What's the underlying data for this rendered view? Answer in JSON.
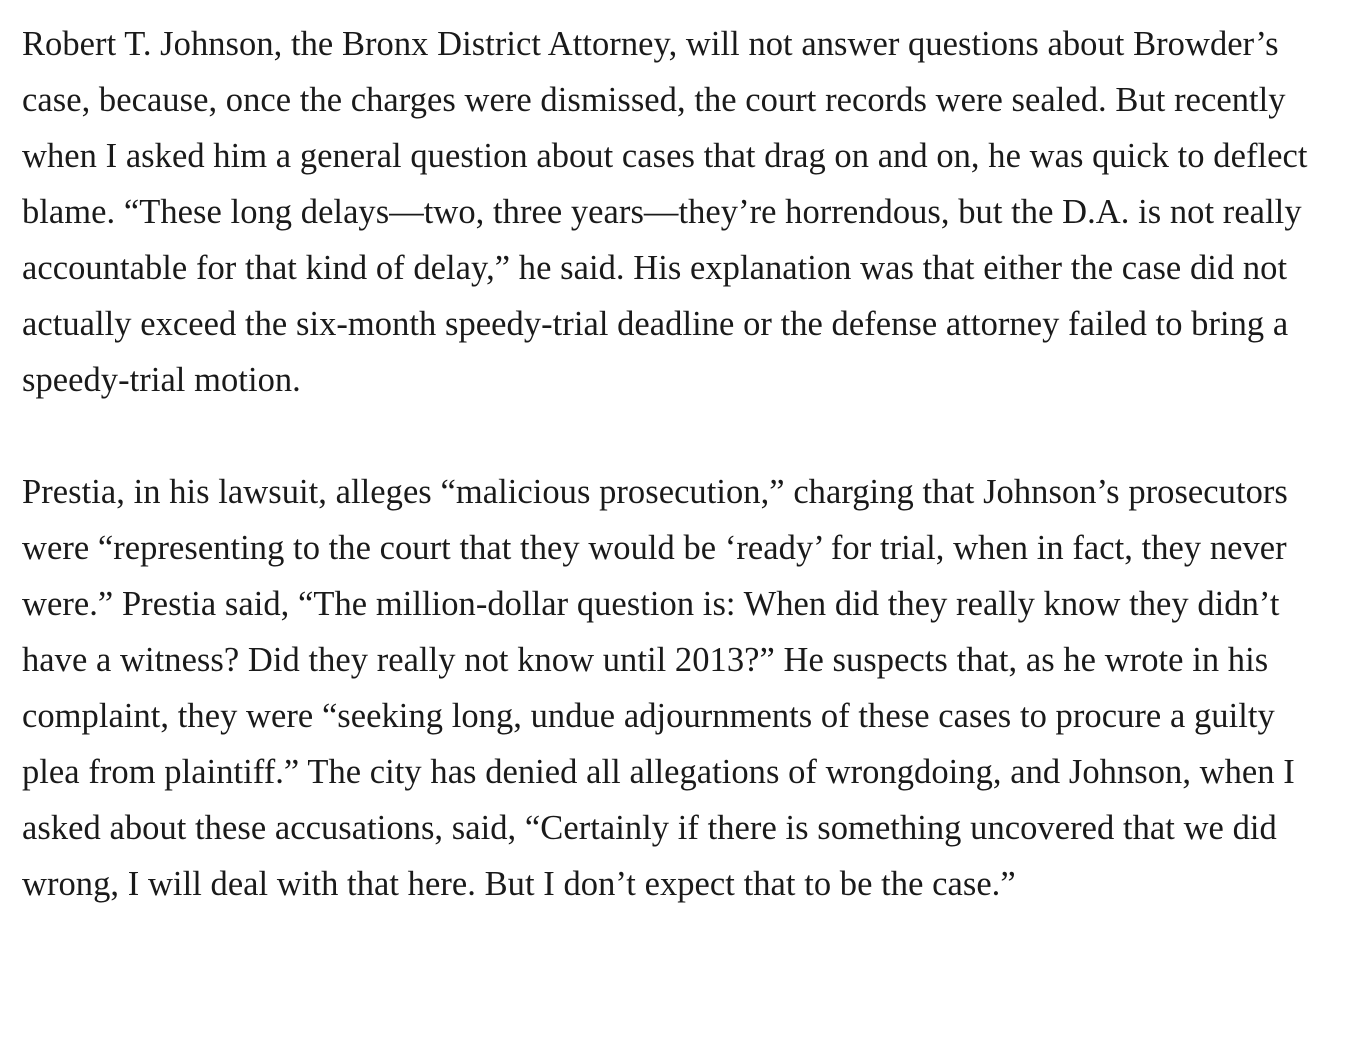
{
  "article": {
    "paragraphs": [
      "Robert T. Johnson, the Bronx District Attorney, will not answer questions about Browder’s case, because, once the charges were dismissed, the court records were sealed. But recently when I asked him a general question about cases that drag on and on, he was quick to deflect blame. “These long delays—two, three years—they’re horrendous, but the D.A. is not really accountable for that kind of delay,” he said. His explanation was that either the case did not actually exceed the six-month speedy-trial deadline or the defense attorney failed to bring a speedy-trial motion.",
      "Prestia, in his lawsuit, alleges “malicious prosecution,” charging that Johnson’s prosecutors were “representing to the court that they would be ‘ready’ for trial, when in fact, they never were.” Prestia said, “The million-dollar question is: When did they really know they didn’t have a witness? Did they really not know until 2013?” He suspects that, as he wrote in his complaint, they were “seeking long, undue adjournments of these cases to procure a guilty plea from plaintiff.” The city has denied all allegations of wrongdoing, and Johnson, when I asked about these accusations, said, “Certainly if there is something uncovered that we did wrong, I will deal with that here. But I don’t expect that to be the case.”"
    ]
  }
}
